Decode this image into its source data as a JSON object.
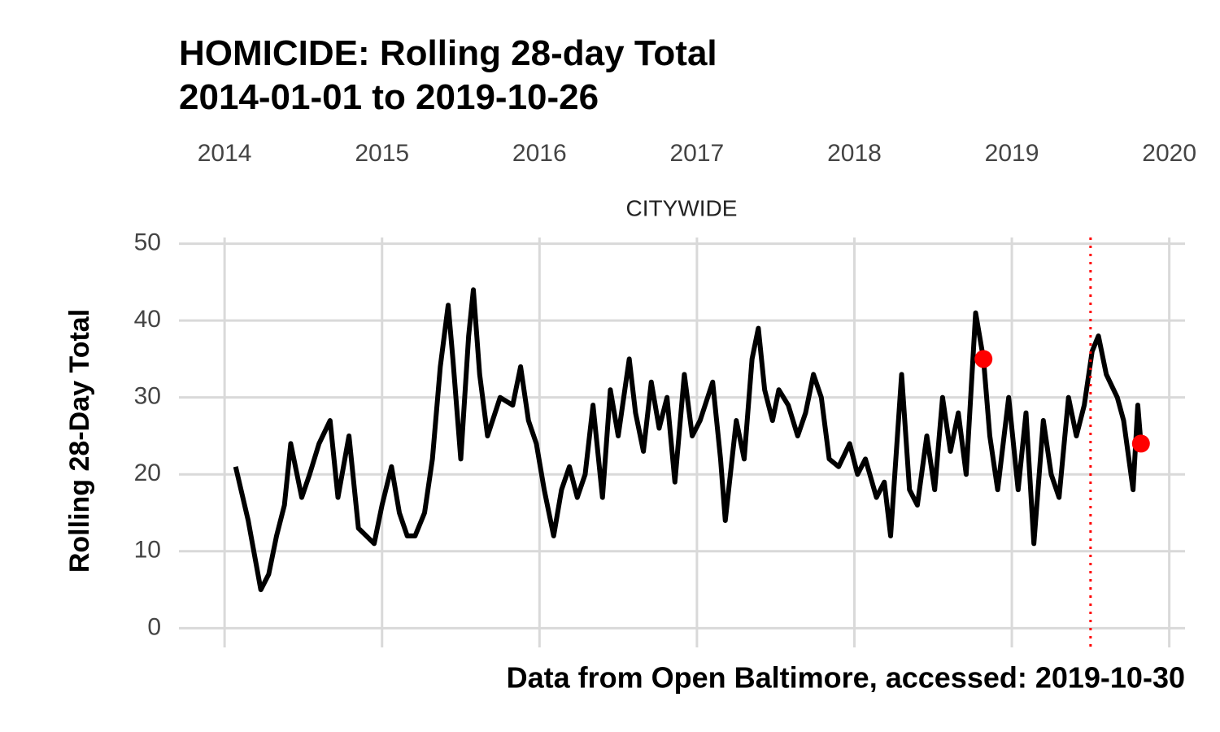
{
  "chart_data": {
    "type": "line",
    "title": "HOMICIDE: Rolling 28-day Total",
    "subtitle": "2014-01-01 to 2019-10-26",
    "facet_label": "CITYWIDE",
    "y_label": "Rolling 28-Day Total",
    "caption": "Data from Open Baltimore, accessed: 2019-10-30",
    "x": [
      2014.07,
      2014.15,
      2014.23,
      2014.28,
      2014.33,
      2014.38,
      2014.42,
      2014.49,
      2014.54,
      2014.6,
      2014.67,
      2014.72,
      2014.79,
      2014.85,
      2014.9,
      2014.95,
      2015.0,
      2015.06,
      2015.11,
      2015.16,
      2015.21,
      2015.27,
      2015.32,
      2015.37,
      2015.42,
      2015.45,
      2015.5,
      2015.55,
      2015.58,
      2015.62,
      2015.67,
      2015.75,
      2015.83,
      2015.88,
      2015.93,
      2015.98,
      2016.03,
      2016.09,
      2016.14,
      2016.19,
      2016.24,
      2016.29,
      2016.34,
      2016.4,
      2016.45,
      2016.5,
      2016.57,
      2016.61,
      2016.66,
      2016.71,
      2016.76,
      2016.81,
      2016.86,
      2016.92,
      2016.97,
      2017.02,
      2017.1,
      2017.15,
      2017.18,
      2017.25,
      2017.3,
      2017.35,
      2017.39,
      2017.43,
      2017.48,
      2017.52,
      2017.58,
      2017.64,
      2017.69,
      2017.74,
      2017.79,
      2017.84,
      2017.9,
      2017.97,
      2018.02,
      2018.07,
      2018.14,
      2018.19,
      2018.23,
      2018.3,
      2018.35,
      2018.4,
      2018.46,
      2018.51,
      2018.56,
      2018.61,
      2018.66,
      2018.71,
      2018.77,
      2018.82,
      2018.86,
      2018.91,
      2018.98,
      2019.04,
      2019.09,
      2019.14,
      2019.2,
      2019.25,
      2019.3,
      2019.36,
      2019.41,
      2019.46,
      2019.51,
      2019.55,
      2019.6,
      2019.67,
      2019.71,
      2019.77,
      2019.8,
      2019.82
    ],
    "series": [
      {
        "color": "#000000",
        "values": [
          21,
          14,
          5,
          7,
          12,
          16,
          24,
          17,
          20,
          24,
          27,
          17,
          25,
          13,
          12,
          11,
          16,
          21,
          15,
          12,
          12,
          15,
          22,
          34,
          42,
          35,
          22,
          38,
          44,
          33,
          25,
          30,
          29,
          34,
          27,
          24,
          18,
          12,
          18,
          21,
          17,
          20,
          29,
          17,
          31,
          25,
          35,
          28,
          23,
          32,
          26,
          30,
          19,
          33,
          25,
          27,
          32,
          22,
          14,
          27,
          22,
          35,
          39,
          31,
          27,
          31,
          29,
          25,
          28,
          33,
          30,
          22,
          21,
          24,
          20,
          22,
          17,
          19,
          12,
          33,
          18,
          16,
          25,
          18,
          30,
          23,
          28,
          20,
          41,
          35,
          25,
          18,
          30,
          18,
          28,
          11,
          27,
          20,
          17,
          30,
          25,
          29,
          36,
          38,
          33,
          30,
          27,
          18,
          29,
          24
        ]
      }
    ],
    "highlights": {
      "color": "#ff0000",
      "x": [
        2018.82,
        2019.82
      ],
      "values": [
        35,
        24
      ]
    },
    "vline": {
      "x": 2019.5,
      "color": "#ff0000"
    },
    "xlim": [
      2013.71,
      2020.1
    ],
    "xticks": [
      2014,
      2015,
      2016,
      2017,
      2018,
      2019,
      2020
    ],
    "ylim": [
      -2.5,
      50.8
    ],
    "yticks": [
      0,
      10,
      20,
      30,
      40,
      50
    ],
    "grid": true
  }
}
